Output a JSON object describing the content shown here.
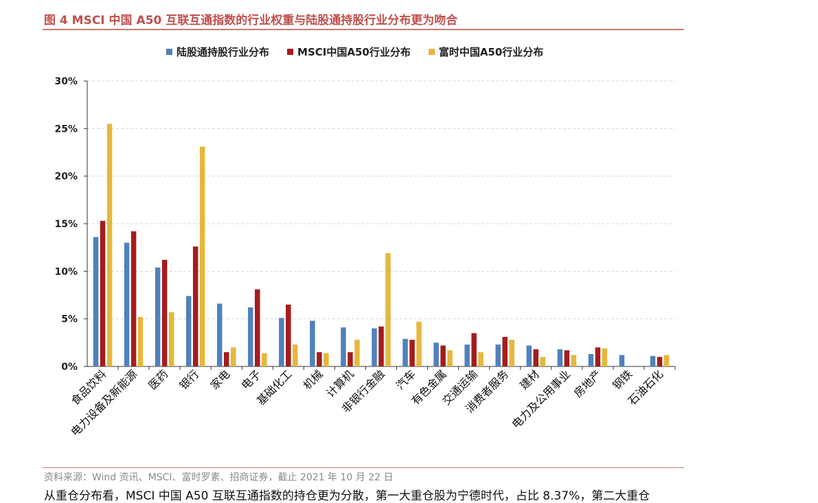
{
  "figure": {
    "title": "图 4 MSCI 中国 A50 互联互通指数的行业权重与陆股通持股行业分布更为吻合",
    "source": "资料来源：Wind 资讯、MSCI、富时罗素、招商证券，截止 2021 年 10 月 22 日",
    "body_text": "从重仓分布看，MSCI 中国 A50 互联互通指数的持仓更为分散，第一大重仓股为宁德时代，占比 8.37%，第二大重仓"
  },
  "chart_data": {
    "type": "bar",
    "categories": [
      "食品饮料",
      "电力设备及新能源",
      "医药",
      "银行",
      "家电",
      "电子",
      "基础化工",
      "机械",
      "计算机",
      "非银行金融",
      "汽车",
      "有色金属",
      "交通运输",
      "消费者服务",
      "建材",
      "电力及公用事业",
      "房地产",
      "钢铁",
      "石油石化"
    ],
    "series": [
      {
        "name": "陆股通持股行业分布",
        "color": "#4f81bd",
        "values": [
          13.6,
          13.0,
          10.4,
          7.4,
          6.6,
          6.2,
          5.1,
          4.8,
          4.1,
          4.0,
          2.9,
          2.5,
          2.3,
          2.3,
          2.2,
          1.8,
          1.3,
          1.2,
          1.1
        ]
      },
      {
        "name": "MSCI中国A50行业分布",
        "color": "#a51c1c",
        "values": [
          15.3,
          14.2,
          11.2,
          12.6,
          1.5,
          8.1,
          6.5,
          1.5,
          1.5,
          4.2,
          2.8,
          2.2,
          3.5,
          3.1,
          1.8,
          1.7,
          2.0,
          0.0,
          1.0
        ]
      },
      {
        "name": "富时中国A50行业分布",
        "color": "#e5b83b",
        "values": [
          25.5,
          5.2,
          5.7,
          23.1,
          2.0,
          1.4,
          2.3,
          1.4,
          2.8,
          11.9,
          4.7,
          1.7,
          1.5,
          2.8,
          1.0,
          1.2,
          1.9,
          0.0,
          1.2
        ]
      }
    ],
    "yticks": [
      "0%",
      "5%",
      "10%",
      "15%",
      "20%",
      "25%",
      "30%"
    ],
    "ylim": [
      0,
      30
    ],
    "grid": true,
    "legend_position": "top"
  }
}
